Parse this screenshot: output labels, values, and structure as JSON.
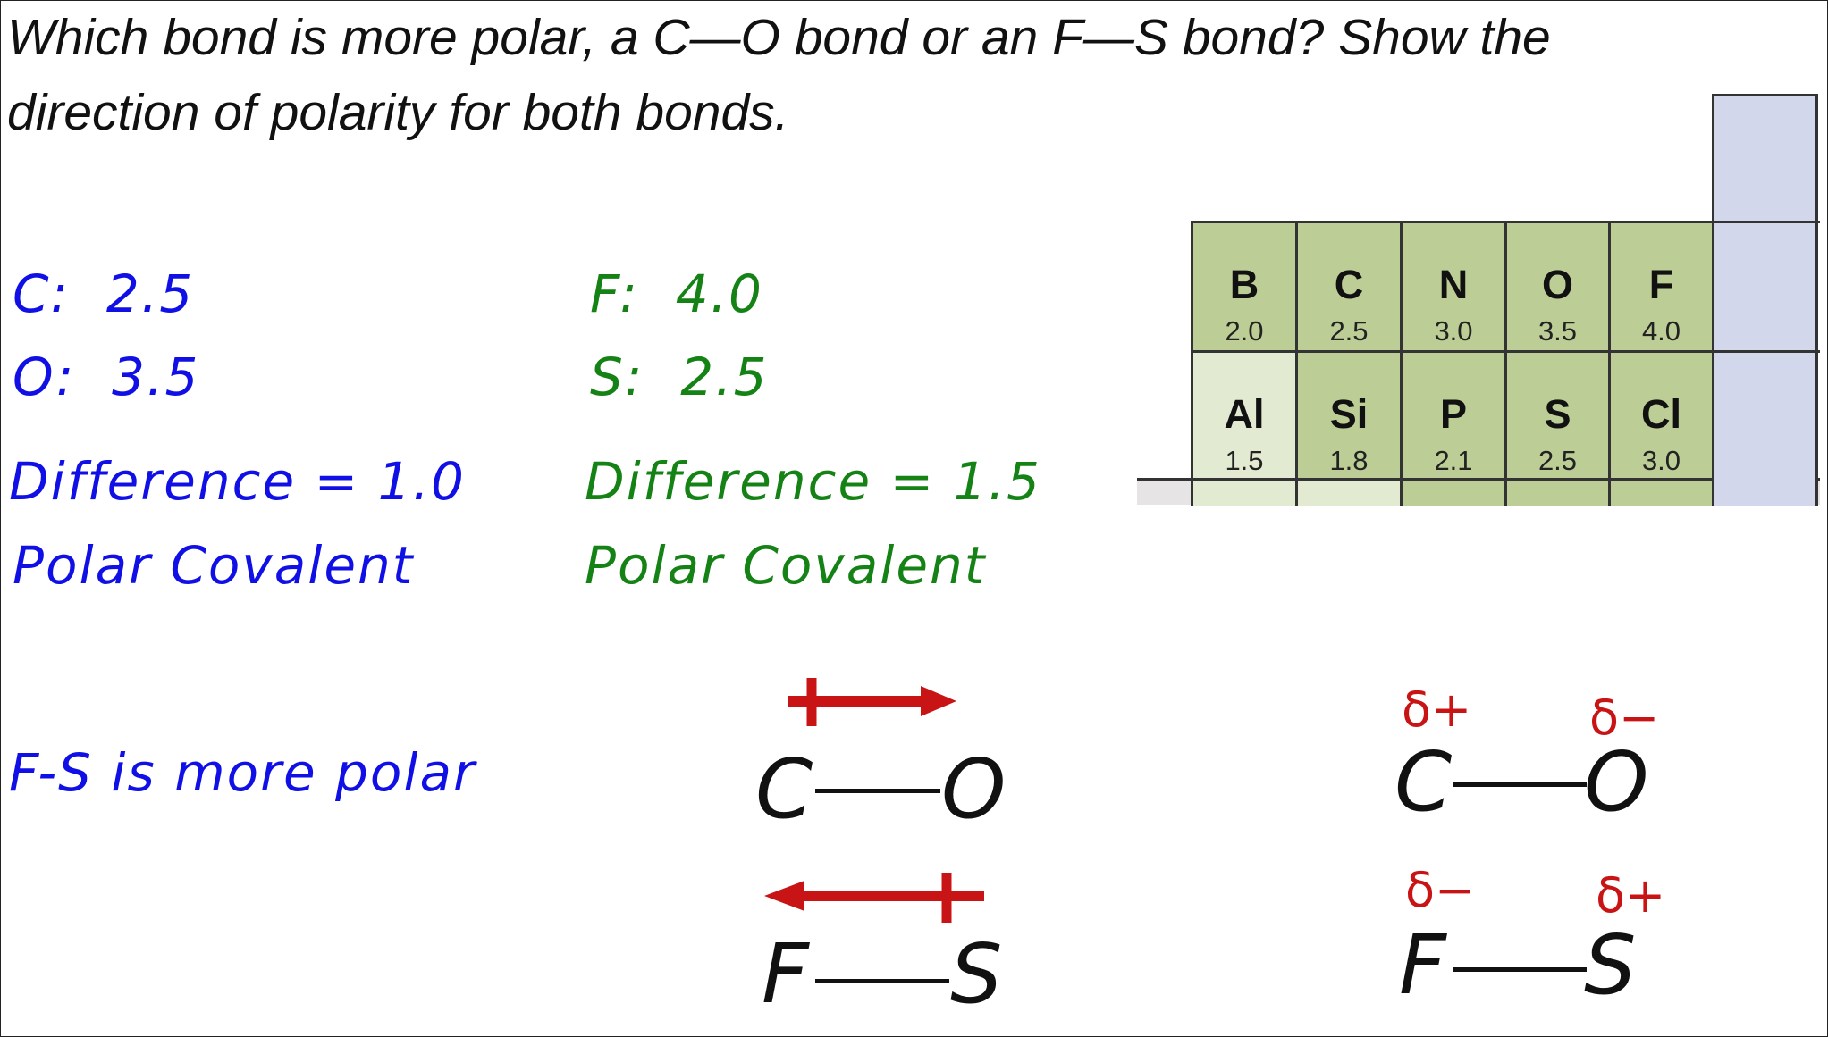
{
  "question": "Which bond is more polar, a C—O bond or an F—S bond?  Show the direction of polarity for both bonds.",
  "co_work": {
    "c_line": "C:  2.5",
    "o_line": "O:  3.5",
    "difference": "Difference = 1.0",
    "classification": "Polar Covalent"
  },
  "fs_work": {
    "f_line": "F:  4.0",
    "s_line": "S:  2.5",
    "difference": "Difference = 1.5",
    "classification": "Polar Covalent"
  },
  "conclusion": "F-S is more polar",
  "periodic_table": {
    "row1": [
      {
        "symbol": "B",
        "en": "2.0"
      },
      {
        "symbol": "C",
        "en": "2.5"
      },
      {
        "symbol": "N",
        "en": "3.0"
      },
      {
        "symbol": "O",
        "en": "3.5"
      },
      {
        "symbol": "F",
        "en": "4.0"
      }
    ],
    "row2": [
      {
        "symbol": "Al",
        "en": "1.5"
      },
      {
        "symbol": "Si",
        "en": "1.8"
      },
      {
        "symbol": "P",
        "en": "2.1"
      },
      {
        "symbol": "S",
        "en": "2.5"
      },
      {
        "symbol": "Cl",
        "en": "3.0"
      }
    ],
    "colors": {
      "green": "#bccd95",
      "light_green": "#e2ebd2",
      "lavender": "#d3d7ec"
    }
  },
  "arrow_diagrams": {
    "co": {
      "left": "C",
      "right": "O",
      "arrow_direction": "toward O"
    },
    "fs": {
      "left": "F",
      "right": "S",
      "arrow_direction": "toward F"
    }
  },
  "partial_charge_diagrams": {
    "co": {
      "left": "C",
      "right": "O",
      "left_charge": "δ+",
      "right_charge": "δ−"
    },
    "fs": {
      "left": "F",
      "right": "S",
      "left_charge": "δ−",
      "right_charge": "δ+"
    }
  },
  "colors": {
    "co_work": "#1010e6",
    "fs_work": "#158215",
    "polarity_marks": "#c81414"
  }
}
